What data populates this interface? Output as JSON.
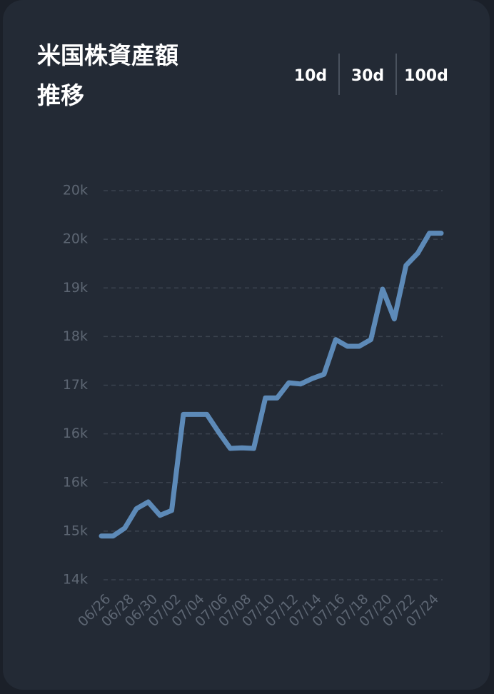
{
  "chart_data": {
    "type": "line",
    "title": "米国株資産額推移",
    "categories": [
      "06/26",
      null,
      "06/28",
      null,
      "06/30",
      null,
      "07/02",
      null,
      "07/04",
      null,
      "07/06",
      null,
      "07/08",
      null,
      "07/10",
      null,
      "07/12",
      null,
      "07/14",
      null,
      "07/16",
      null,
      "07/18",
      null,
      "07/20",
      null,
      "07/22",
      null,
      "07/24",
      null
    ],
    "series": [
      {
        "color": "#5d8ab8",
        "values": [
          14720,
          14720,
          14850,
          15170,
          15280,
          15060,
          15140,
          16720,
          16720,
          16720,
          16430,
          16160,
          16170,
          16160,
          16990,
          16990,
          17240,
          17220,
          17310,
          17380,
          17950,
          17840,
          17840,
          17950,
          18780,
          18290,
          19170,
          19370,
          19700,
          19700
        ]
      }
    ],
    "ylim": [
      14000,
      20400
    ],
    "yticks": [
      {
        "value": 14000,
        "label": "14k"
      },
      {
        "value": 14800,
        "label": "15k"
      },
      {
        "value": 15600,
        "label": "16k"
      },
      {
        "value": 16400,
        "label": "16k"
      },
      {
        "value": 17200,
        "label": "17k"
      },
      {
        "value": 18000,
        "label": "18k"
      },
      {
        "value": 18800,
        "label": "19k"
      },
      {
        "value": 19600,
        "label": "20k"
      },
      {
        "value": 20400,
        "label": "20k"
      }
    ],
    "grid": true
  },
  "controls": {
    "ranges": [
      "10d",
      "30d",
      "100d"
    ]
  }
}
